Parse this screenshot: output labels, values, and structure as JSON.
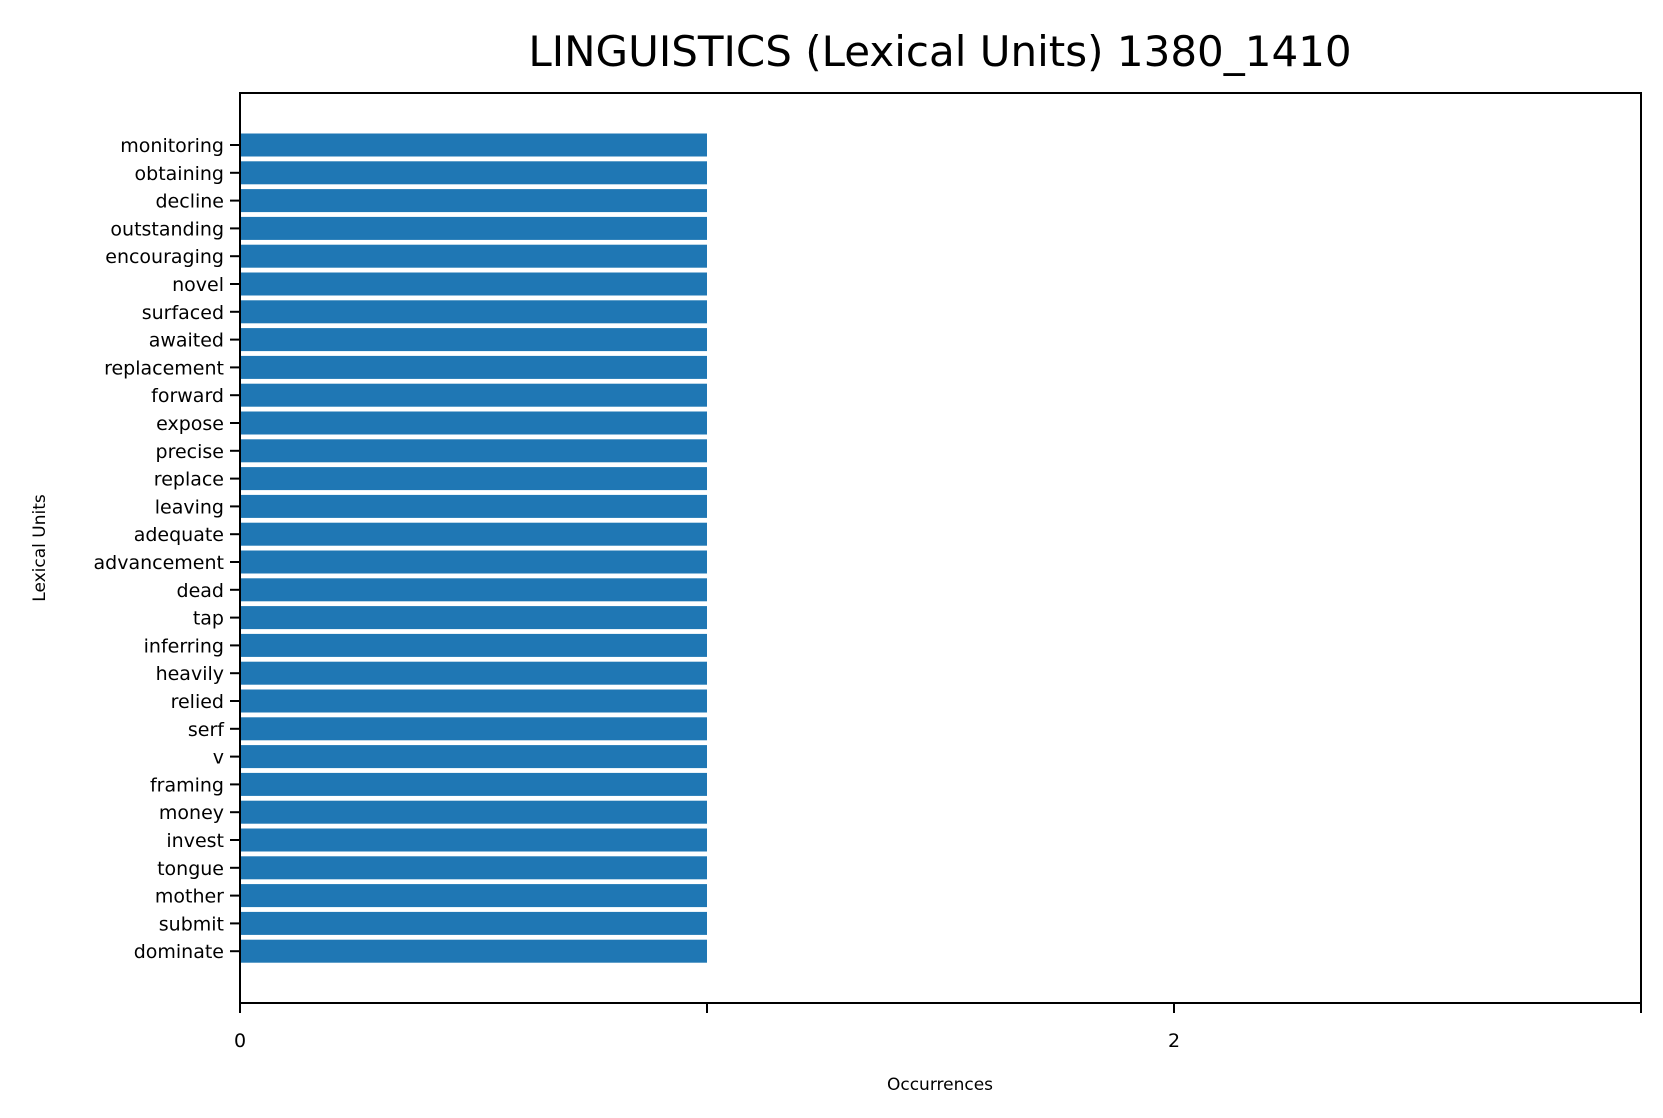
{
  "chart_data": {
    "type": "bar",
    "orientation": "horizontal",
    "title": "LINGUISTICS (Lexical Units) 1380_1410",
    "xlabel": "Occurrences",
    "ylabel": "Lexical Units",
    "xlim": [
      0,
      3
    ],
    "x_ticks": [
      0,
      1,
      2,
      3
    ],
    "x_tick_labels": [
      "0",
      "",
      "2",
      ""
    ],
    "grid": false,
    "legend": "none",
    "bar_color": "#1f77b4",
    "categories": [
      "monitoring",
      "obtaining",
      "decline",
      "outstanding",
      "encouraging",
      "novel",
      "surfaced",
      "awaited",
      "replacement",
      "forward",
      "expose",
      "precise",
      "replace",
      "leaving",
      "adequate",
      "advancement",
      "dead",
      "tap",
      "inferring",
      "heavily",
      "relied",
      "serf",
      "v",
      "framing",
      "money",
      "invest",
      "tongue",
      "mother",
      "submit",
      "dominate"
    ],
    "values": [
      1,
      1,
      1,
      1,
      1,
      1,
      1,
      1,
      1,
      1,
      1,
      1,
      1,
      1,
      1,
      1,
      1,
      1,
      1,
      1,
      1,
      1,
      1,
      1,
      1,
      1,
      1,
      1,
      1,
      1
    ]
  }
}
